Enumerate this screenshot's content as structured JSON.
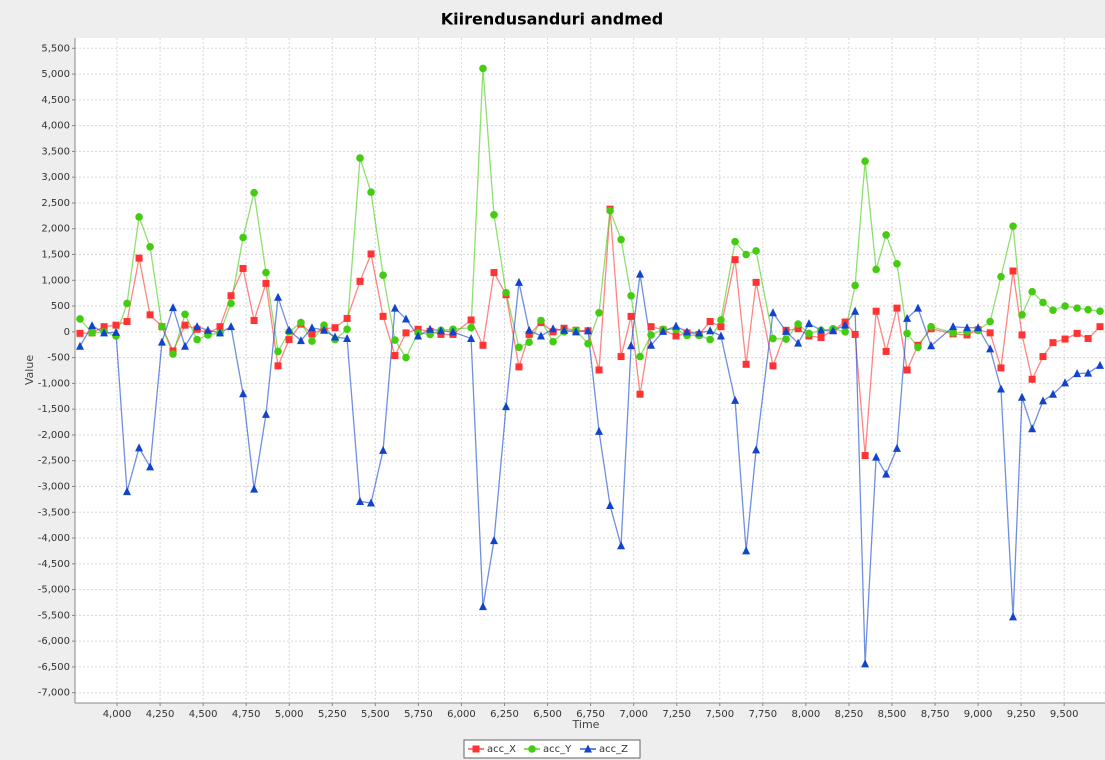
{
  "chart_data": {
    "type": "line",
    "title": "Kiirendusanduri andmed",
    "x_label": "Time",
    "y_label": "Value",
    "x": [
      3785,
      3855,
      3925,
      3994,
      4058,
      4128,
      4192,
      4261,
      4325,
      4395,
      4465,
      4528,
      4598,
      4662,
      4732,
      4796,
      4865,
      4935,
      4999,
      5068,
      5132,
      5202,
      5266,
      5336,
      5411,
      5475,
      5545,
      5614,
      5678,
      5748,
      5818,
      5881,
      5951,
      6056,
      6125,
      6189,
      6259,
      6334,
      6393,
      6462,
      6532,
      6596,
      6665,
      6735,
      6799,
      6863,
      6927,
      6985,
      7037,
      7101,
      7171,
      7246,
      7310,
      7380,
      7444,
      7507,
      7589,
      7653,
      7711,
      7809,
      7885,
      7955,
      8018,
      8088,
      8158,
      8228,
      8286,
      8344,
      8408,
      8466,
      8529,
      8588,
      8651,
      8727,
      8855,
      8936,
      9000,
      9070,
      9133,
      9203,
      9255,
      9314,
      9377,
      9435,
      9505,
      9575,
      9639,
      9708
    ],
    "series": [
      {
        "name": "acc_X",
        "color": "#ff3333",
        "marker": "square",
        "values": [
          -30,
          -20,
          100,
          130,
          200,
          1430,
          330,
          100,
          -370,
          130,
          50,
          -30,
          100,
          700,
          1230,
          220,
          940,
          -660,
          -150,
          150,
          -40,
          60,
          80,
          260,
          980,
          1510,
          300,
          -460,
          -20,
          50,
          10,
          -50,
          -50,
          230,
          -260,
          1150,
          720,
          -680,
          -50,
          180,
          0,
          70,
          30,
          20,
          -740,
          2380,
          -480,
          300,
          -1210,
          100,
          40,
          -80,
          -20,
          -50,
          200,
          100,
          1400,
          -630,
          960,
          -660,
          30,
          60,
          -80,
          -110,
          30,
          190,
          -50,
          -2400,
          400,
          -380,
          460,
          -740,
          -260,
          60,
          -40,
          -60,
          40,
          -20,
          -700,
          1180,
          -60,
          -920,
          -480,
          -210,
          -140,
          -30,
          -130,
          100
        ]
      },
      {
        "name": "acc_Y",
        "color": "#44cc11",
        "marker": "circle",
        "values": [
          250,
          -20,
          0,
          -80,
          550,
          2230,
          1650,
          100,
          -430,
          340,
          -150,
          -60,
          -20,
          550,
          1830,
          2700,
          1150,
          -380,
          0,
          180,
          -180,
          130,
          -150,
          50,
          3370,
          2710,
          1100,
          -160,
          -500,
          -20,
          -50,
          30,
          50,
          80,
          5110,
          2270,
          760,
          -300,
          -200,
          220,
          -190,
          0,
          30,
          -230,
          370,
          2350,
          1790,
          700,
          -480,
          -60,
          50,
          50,
          -70,
          -70,
          -150,
          230,
          1750,
          1500,
          1570,
          -130,
          -140,
          150,
          -30,
          30,
          60,
          0,
          900,
          3310,
          1210,
          1880,
          1320,
          -30,
          -300,
          100,
          -20,
          0,
          30,
          200,
          1070,
          2050,
          330,
          780,
          570,
          420,
          500,
          460,
          430,
          400
        ]
      },
      {
        "name": "acc_Z",
        "color": "#1144cc",
        "marker": "triangle",
        "values": [
          -280,
          120,
          -20,
          -10,
          -3100,
          -2250,
          -2620,
          -200,
          470,
          -280,
          100,
          30,
          -20,
          100,
          -1200,
          -3050,
          -1600,
          670,
          30,
          -170,
          80,
          30,
          -100,
          -130,
          -3290,
          -3320,
          -2300,
          460,
          250,
          -80,
          50,
          20,
          0,
          -130,
          -5330,
          -4050,
          -1450,
          960,
          30,
          -80,
          60,
          30,
          0,
          20,
          -1930,
          -3370,
          -4150,
          -270,
          1120,
          -260,
          10,
          110,
          0,
          -20,
          20,
          -80,
          -1330,
          -4250,
          -2290,
          370,
          10,
          -220,
          160,
          30,
          20,
          130,
          400,
          -6440,
          -2430,
          -2760,
          -2260,
          260,
          460,
          -270,
          100,
          80,
          80,
          -330,
          -1110,
          -5530,
          -1270,
          -1880,
          -1340,
          -1210,
          -990,
          -810,
          -800,
          -650
        ]
      }
    ],
    "xlim": [
      3756,
      9737
    ],
    "xticks": [
      {
        "value": 4000,
        "label": "4,000"
      },
      {
        "value": 4250,
        "label": "4,250"
      },
      {
        "value": 4500,
        "label": "4,500"
      },
      {
        "value": 4750,
        "label": "4,750"
      },
      {
        "value": 5000,
        "label": "5,000"
      },
      {
        "value": 5250,
        "label": "5,250"
      },
      {
        "value": 5500,
        "label": "5,500"
      },
      {
        "value": 5750,
        "label": "5,750"
      },
      {
        "value": 6000,
        "label": "6,000"
      },
      {
        "value": 6250,
        "label": "6,250"
      },
      {
        "value": 6500,
        "label": "6,500"
      },
      {
        "value": 6750,
        "label": "6,750"
      },
      {
        "value": 7000,
        "label": "7,000"
      },
      {
        "value": 7250,
        "label": "7,250"
      },
      {
        "value": 7500,
        "label": "7,500"
      },
      {
        "value": 7750,
        "label": "7,750"
      },
      {
        "value": 8000,
        "label": "8,000"
      },
      {
        "value": 8250,
        "label": "8,250"
      },
      {
        "value": 8500,
        "label": "8,500"
      },
      {
        "value": 8750,
        "label": "8,750"
      },
      {
        "value": 9000,
        "label": "9,000"
      },
      {
        "value": 9250,
        "label": "9,250"
      },
      {
        "value": 9500,
        "label": "9,500"
      }
    ],
    "ylim": [
      -7200,
      5700
    ],
    "yticks": [
      {
        "value": -7000,
        "label": "-7,000"
      },
      {
        "value": -6500,
        "label": "-6,500"
      },
      {
        "value": -6000,
        "label": "-6,000"
      },
      {
        "value": -5500,
        "label": "-5,500"
      },
      {
        "value": -5000,
        "label": "-5,000"
      },
      {
        "value": -4500,
        "label": "-4,500"
      },
      {
        "value": -4000,
        "label": "-4,000"
      },
      {
        "value": -3500,
        "label": "-3,500"
      },
      {
        "value": -3000,
        "label": "-3,000"
      },
      {
        "value": -2500,
        "label": "-2,500"
      },
      {
        "value": -2000,
        "label": "-2,000"
      },
      {
        "value": -1500,
        "label": "-1,500"
      },
      {
        "value": -1000,
        "label": "-1,000"
      },
      -500,
      0,
      500,
      {
        "value": 1000,
        "label": "1,000"
      },
      {
        "value": 1500,
        "label": "1,500"
      },
      {
        "value": 2000,
        "label": "2,000"
      },
      {
        "value": 2500,
        "label": "2,500"
      },
      {
        "value": 3000,
        "label": "3,000"
      },
      {
        "value": 3500,
        "label": "3,500"
      },
      {
        "value": 4000,
        "label": "4,000"
      },
      {
        "value": 4500,
        "label": "4,500"
      },
      {
        "value": 5000,
        "label": "5,000"
      },
      {
        "value": 5500,
        "label": "5,500"
      }
    ],
    "grid": true,
    "legend": "bottom"
  }
}
